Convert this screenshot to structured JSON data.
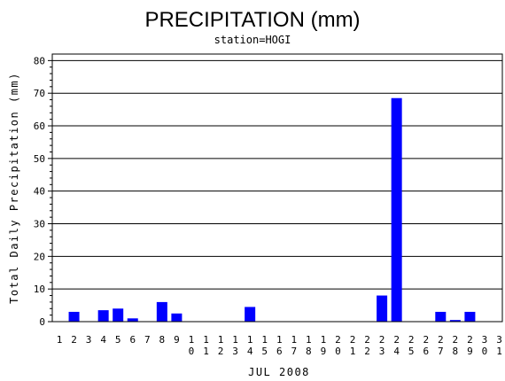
{
  "chart_data": {
    "type": "bar",
    "title": "PRECIPITATION (mm)",
    "subtitle": "station=HOGI",
    "xlabel": "JUL 2008",
    "ylabel": "Total Daily Precipitation (mm)",
    "ylim": [
      0,
      82
    ],
    "yticks": [
      0,
      10,
      20,
      30,
      40,
      50,
      60,
      70,
      80
    ],
    "grid": true,
    "categories": [
      "1",
      "2",
      "3",
      "4",
      "5",
      "6",
      "7",
      "8",
      "9",
      "10",
      "11",
      "12",
      "13",
      "14",
      "15",
      "16",
      "17",
      "18",
      "19",
      "20",
      "21",
      "22",
      "23",
      "24",
      "25",
      "26",
      "27",
      "28",
      "29",
      "30",
      "31"
    ],
    "values": [
      0,
      3.0,
      0,
      3.5,
      4.0,
      1.0,
      0,
      6.0,
      2.5,
      0,
      0,
      0,
      0,
      4.5,
      0,
      0,
      0,
      0,
      0,
      0,
      0,
      0,
      8.0,
      68.5,
      0,
      0,
      3.0,
      0.5,
      3.0,
      0,
      0
    ],
    "bar_color": "#0000ff",
    "grid_color": "#000000"
  }
}
